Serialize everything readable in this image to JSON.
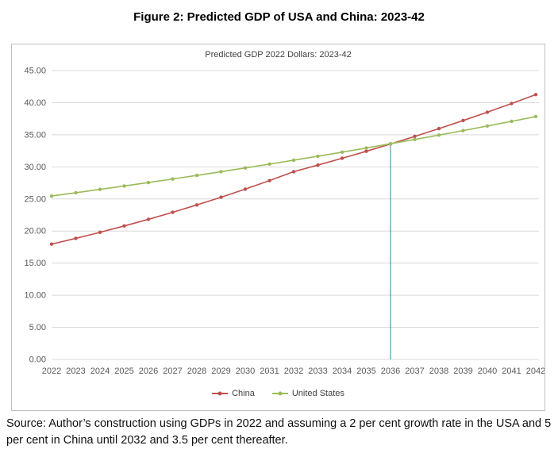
{
  "page": {
    "title": "Figure 2: Predicted GDP of USA and China: 2023-42",
    "source_text": "Source: Author’s construction using GDPs in 2022 and assuming a 2 per cent growth rate in the USA and 5 per cent in China until 2032 and 3.5 per cent thereafter."
  },
  "chart_data": {
    "type": "line",
    "title": "Predicted GDP 2022 Dollars: 2023-42",
    "x_labels": [
      "2022",
      "2023",
      "2024",
      "2025",
      "2026",
      "2027",
      "2028",
      "2029",
      "2030",
      "2031",
      "2032",
      "2033",
      "2034",
      "2035",
      "2036",
      "2037",
      "2038",
      "2039",
      "2040",
      "2041",
      "2042"
    ],
    "series": [
      {
        "name": "China",
        "color": "#C0504D",
        "values": [
          17.96,
          18.86,
          19.8,
          20.79,
          21.83,
          22.92,
          24.07,
          25.27,
          26.53,
          27.86,
          29.25,
          30.28,
          31.34,
          32.43,
          33.57,
          34.74,
          35.96,
          37.22,
          38.52,
          39.87,
          41.26
        ]
      },
      {
        "name": "United States",
        "color": "#9BBB59",
        "values": [
          25.46,
          25.97,
          26.49,
          27.02,
          27.56,
          28.11,
          28.67,
          29.25,
          29.83,
          30.43,
          31.04,
          31.66,
          32.29,
          32.94,
          33.6,
          34.27,
          34.95,
          35.65,
          36.37,
          37.09,
          37.84
        ]
      }
    ],
    "ylim": [
      0,
      45
    ],
    "ytick_step": 5,
    "ytick_labels": [
      "0.00",
      "5.00",
      "10.00",
      "15.00",
      "20.00",
      "25.00",
      "30.00",
      "35.00",
      "40.00",
      "45.00"
    ],
    "grid": true,
    "legend_position": "bottom",
    "annotation": {
      "type": "vline",
      "x_label": "2036",
      "x_index": 14,
      "y_top": 33.57,
      "y_bottom": 0,
      "color": "#31859C"
    },
    "colors": {
      "gridline": "#d9d9d9",
      "axis_text": "#595959",
      "frame_border": "#bfbfbf"
    }
  }
}
